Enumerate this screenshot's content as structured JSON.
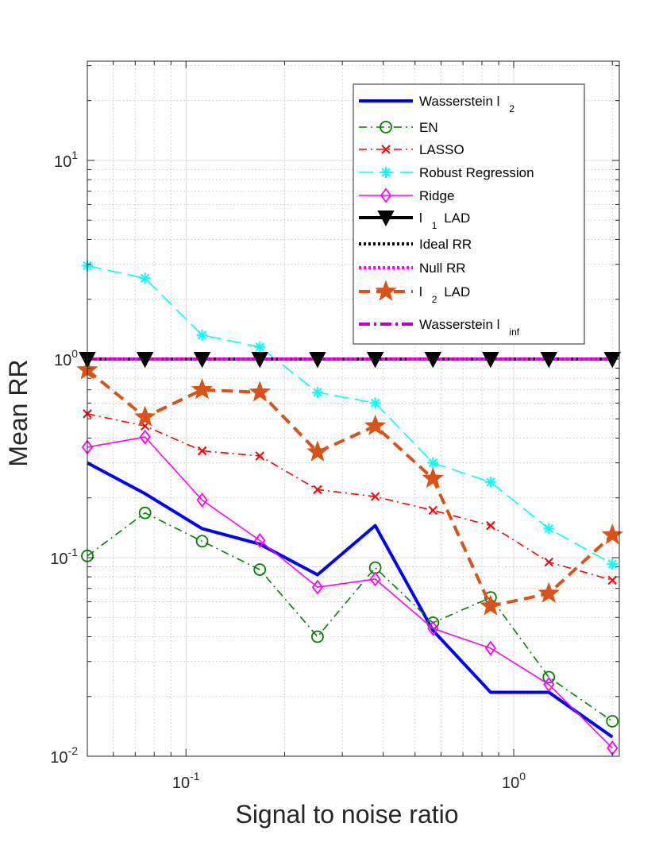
{
  "chart_data": {
    "type": "line",
    "xscale": "log",
    "yscale": "log",
    "xlim": [
      0.05,
      2.1
    ],
    "ylim": [
      0.01,
      31.6
    ],
    "xlabel": "Signal to noise ratio",
    "ylabel": "Mean RR",
    "grid": true,
    "legend_position": "top-right",
    "x_ticks": [
      {
        "base": "10",
        "exp": "-1",
        "value": 0.1
      },
      {
        "base": "10",
        "exp": "0",
        "value": 1
      }
    ],
    "y_ticks": [
      {
        "base": "10",
        "exp": "-2",
        "value": 0.01
      },
      {
        "base": "10",
        "exp": "-1",
        "value": 0.1
      },
      {
        "base": "10",
        "exp": "0",
        "value": 1
      },
      {
        "base": "10",
        "exp": "1",
        "value": 10
      }
    ],
    "x": [
      0.05,
      0.075,
      0.112,
      0.168,
      0.252,
      0.378,
      0.567,
      0.85,
      1.28,
      2.0
    ],
    "series": [
      {
        "name": "Wasserstein l",
        "sub": "2",
        "color": "#0000ff",
        "width": 4,
        "dash": "",
        "marker": "none",
        "values": [
          0.3,
          0.21,
          0.14,
          0.117,
          0.082,
          0.145,
          0.043,
          0.021,
          0.021,
          0.0125
        ]
      },
      {
        "name": "EN",
        "sub": "",
        "color": "#008000",
        "width": 1.6,
        "dash": "10,5,2,5",
        "marker": "circle",
        "values": [
          0.102,
          0.168,
          0.121,
          0.087,
          0.04,
          0.089,
          0.047,
          0.063,
          0.025,
          0.015
        ]
      },
      {
        "name": "LASSO",
        "sub": "",
        "color": "#ff0000",
        "width": 1.6,
        "dash": "10,5,2,5",
        "marker": "x",
        "values": [
          0.53,
          0.46,
          0.345,
          0.325,
          0.22,
          0.203,
          0.173,
          0.145,
          0.095,
          0.077
        ]
      },
      {
        "name": "Robust Regression",
        "sub": "",
        "color": "#00ffff",
        "width": 1.6,
        "dash": "18,8",
        "marker": "asterisk",
        "values": [
          2.95,
          2.55,
          1.32,
          1.15,
          0.68,
          0.6,
          0.3,
          0.24,
          0.14,
          0.093
        ]
      },
      {
        "name": "Ridge",
        "sub": "",
        "color": "#ff00ff",
        "width": 1.6,
        "dash": "",
        "marker": "diamond",
        "values": [
          0.36,
          0.405,
          0.195,
          0.122,
          0.071,
          0.078,
          0.044,
          0.035,
          0.023,
          0.011
        ]
      },
      {
        "name": "l",
        "sub": "1",
        "suffix": " LAD",
        "color": "#000000",
        "width": 4,
        "dash": "",
        "marker": "triangle-down",
        "values": [
          1,
          1,
          1,
          1,
          1,
          1,
          1,
          1,
          1,
          1
        ]
      },
      {
        "name": "Ideal RR",
        "sub": "",
        "color": "#000000",
        "width": 4,
        "dash": "3,3",
        "marker": "none",
        "values": [
          1,
          1,
          1,
          1,
          1,
          1,
          1,
          1,
          1,
          1
        ]
      },
      {
        "name": "Null RR",
        "sub": "",
        "color": "#ff00ff",
        "width": 4,
        "dash": "3,3",
        "marker": "none",
        "values": [
          1,
          1,
          1,
          1,
          1,
          1,
          1,
          1,
          1,
          1
        ]
      },
      {
        "name": "l",
        "sub": "2",
        "suffix": " LAD",
        "color": "#d95319",
        "width": 4,
        "dash": "14,8",
        "marker": "star",
        "values": [
          0.88,
          0.51,
          0.7,
          0.68,
          0.34,
          0.46,
          0.25,
          0.057,
          0.066,
          0.13
        ]
      },
      {
        "name": "Wasserstein l",
        "sub": "inf",
        "color": "#bf00bf",
        "width": 4,
        "dash": "14,5,3,5",
        "marker": "none",
        "values": [
          1,
          1,
          1,
          1,
          1,
          1,
          1,
          1,
          1,
          1
        ]
      }
    ]
  }
}
